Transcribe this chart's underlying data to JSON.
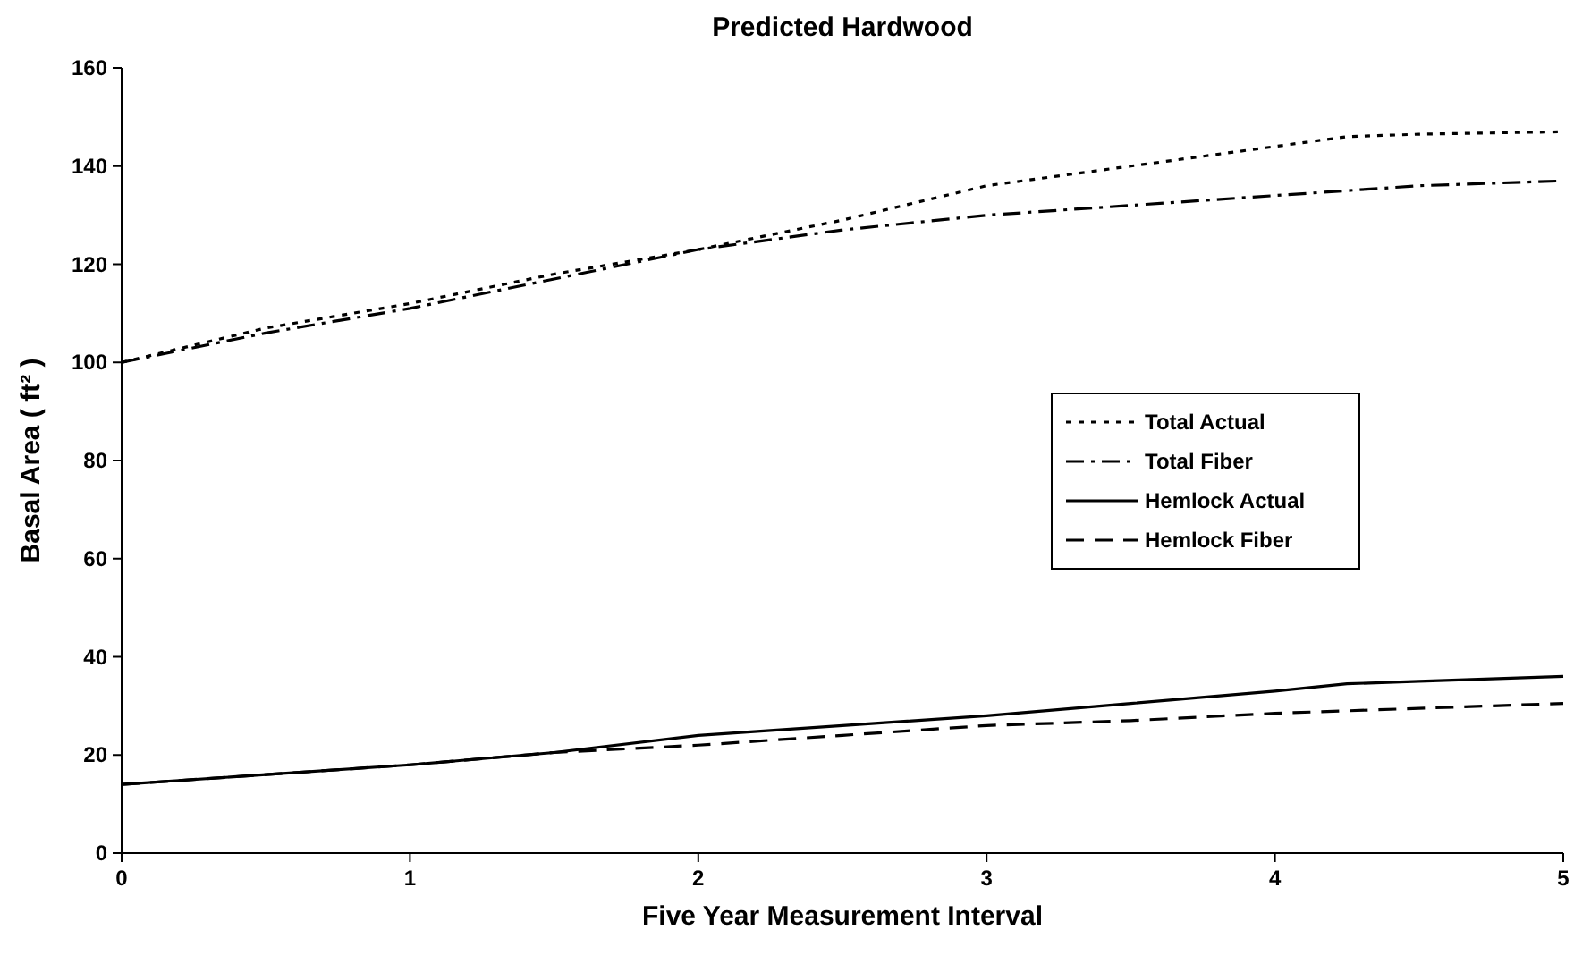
{
  "chart_data": {
    "type": "line",
    "title": "Predicted Hardwood",
    "xlabel": "Five Year Measurement Interval",
    "ylabel": "Basal Area ( ft² )",
    "x": [
      0,
      0.5,
      1,
      1.5,
      2,
      2.5,
      3,
      3.5,
      4,
      4.25,
      4.5,
      5
    ],
    "series": [
      {
        "name": "Total Actual",
        "color": "#000000",
        "line_style": "dotted",
        "values": [
          100,
          107,
          112,
          118,
          123,
          129,
          136,
          140,
          144,
          146,
          146.5,
          147
        ]
      },
      {
        "name": "Total Fiber",
        "color": "#000000",
        "line_style": "dashdot",
        "values": [
          100,
          106,
          111,
          117,
          123,
          127,
          130,
          132,
          134,
          135,
          136,
          137
        ]
      },
      {
        "name": "Hemlock Actual",
        "color": "#000000",
        "line_style": "solid",
        "values": [
          14,
          16,
          18,
          20.5,
          24,
          26,
          28,
          30.5,
          33,
          34.5,
          35,
          36
        ]
      },
      {
        "name": "Hemlock Fiber",
        "color": "#000000",
        "line_style": "dashed",
        "values": [
          14,
          16,
          18,
          20.5,
          22,
          24,
          26,
          27,
          28.5,
          29,
          29.5,
          30.5
        ]
      }
    ],
    "xlim": [
      0,
      5
    ],
    "xticks": [
      0,
      1,
      2,
      3,
      4,
      5
    ],
    "ylim": [
      0,
      160
    ],
    "yticks": [
      0,
      20,
      40,
      60,
      80,
      100,
      120,
      140,
      160
    ],
    "legend": "right",
    "grid": false
  }
}
